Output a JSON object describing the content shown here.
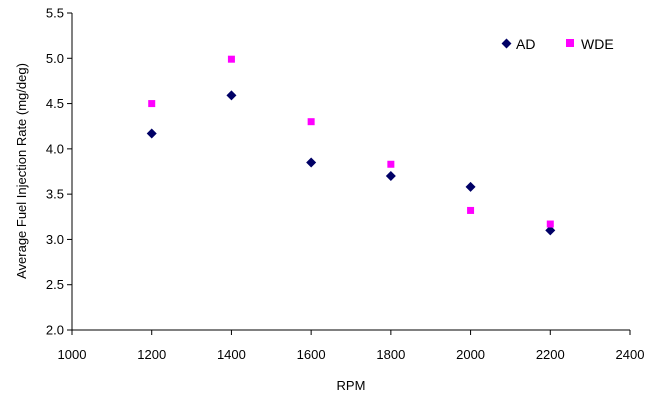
{
  "chart_data": {
    "type": "scatter",
    "xlabel": "RPM",
    "ylabel": "Average Fuel Injection Rate (mg/deg)",
    "xlim": [
      1000,
      2400
    ],
    "ylim": [
      2.0,
      5.5
    ],
    "xticks": [
      1000,
      1200,
      1400,
      1600,
      1800,
      2000,
      2200,
      2400
    ],
    "yticks": [
      2.0,
      2.5,
      3.0,
      3.5,
      4.0,
      4.5,
      5.0,
      5.5
    ],
    "xtick_labels": [
      "1000",
      "1200",
      "1400",
      "1600",
      "1800",
      "2000",
      "2200",
      "2400"
    ],
    "ytick_labels": [
      "2.0",
      "2.5",
      "3.0",
      "3.5",
      "4.0",
      "4.5",
      "5.0",
      "5.5"
    ],
    "grid": false,
    "legend_position": "top-right",
    "series": [
      {
        "name": "AD",
        "marker": "diamond",
        "color": "#000066",
        "x": [
          1200,
          1400,
          1600,
          1800,
          2000,
          2200
        ],
        "y": [
          4.17,
          4.59,
          3.85,
          3.7,
          3.58,
          3.1
        ]
      },
      {
        "name": "WDE",
        "marker": "square",
        "color": "#ff00ff",
        "x": [
          1200,
          1400,
          1600,
          1800,
          2000,
          2200
        ],
        "y": [
          4.5,
          4.99,
          4.3,
          3.83,
          3.32,
          3.17
        ]
      }
    ]
  }
}
